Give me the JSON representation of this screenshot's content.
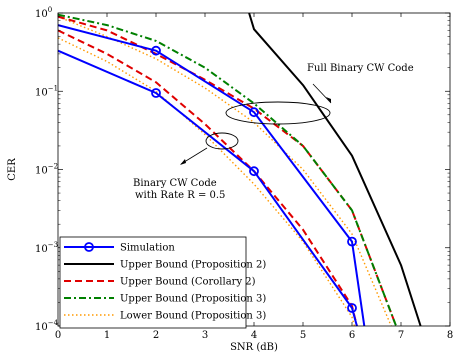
{
  "chart_data": {
    "type": "line",
    "xlabel": "SNR (dB)",
    "ylabel": "CER",
    "xlim": [
      0,
      8
    ],
    "ylim": [
      0.0001,
      1
    ],
    "yscale": "log",
    "grid": false,
    "legend_position": "bottom-left",
    "x_ticks": [
      "0",
      "1",
      "2",
      "3",
      "4",
      "5",
      "6",
      "7",
      "8"
    ],
    "y_ticks": [
      {
        "value": 1,
        "base": "10",
        "exp": "0"
      },
      {
        "value": 0.1,
        "base": "10",
        "exp": "−1"
      },
      {
        "value": 0.01,
        "base": "10",
        "exp": "−2"
      },
      {
        "value": 0.001,
        "base": "10",
        "exp": "−3"
      },
      {
        "value": 0.0001,
        "base": "10",
        "exp": "−4"
      }
    ],
    "series": [
      {
        "name": "Simulation",
        "color": "#0000ff",
        "style": "solid-marker-circle",
        "curves": [
          {
            "x": [
              0,
              2,
              4,
              6,
              6.25
            ],
            "y": [
              0.7,
              0.33,
              0.054,
              0.0012,
              0.0001
            ],
            "markers": [
              2,
              4,
              6
            ]
          },
          {
            "x": [
              0,
              2,
              4,
              6,
              6.1
            ],
            "y": [
              0.33,
              0.095,
              0.0095,
              0.00017,
              0.0001
            ],
            "markers": [
              2,
              4,
              6
            ]
          }
        ]
      },
      {
        "name": "Upper Bound (Proposition 2)",
        "color": "#000000",
        "style": "solid",
        "curves": [
          {
            "x": [
              3.9,
              4,
              5,
              6,
              7,
              7.4
            ],
            "y": [
              1,
              0.62,
              0.12,
              0.015,
              0.0006,
              0.0001
            ]
          }
        ]
      },
      {
        "name": "Upper Bound (Corollary 2)",
        "color": "#e00000",
        "style": "dashed",
        "curves": [
          {
            "x": [
              0,
              1,
              2,
              3,
              4,
              5,
              6,
              6.9
            ],
            "y": [
              0.9,
              0.6,
              0.3,
              0.14,
              0.06,
              0.02,
              0.003,
              0.0001
            ]
          },
          {
            "x": [
              0,
              1,
              2,
              3,
              4,
              5,
              6,
              6.1
            ],
            "y": [
              0.6,
              0.3,
              0.13,
              0.038,
              0.0095,
              0.0017,
              0.00018,
              0.0001
            ]
          }
        ]
      },
      {
        "name": "Upper Bound (Proposition 3)",
        "color": "#008000",
        "style": "dashdot",
        "curves": [
          {
            "x": [
              0,
              1,
              2,
              3,
              4,
              5,
              6,
              6.9
            ],
            "y": [
              0.95,
              0.7,
              0.44,
              0.2,
              0.07,
              0.02,
              0.003,
              0.0001
            ]
          }
        ]
      },
      {
        "name": "Lower Bound (Proposition 3)",
        "color": "#ff9900",
        "style": "dotted",
        "curves": [
          {
            "x": [
              0,
              1,
              2,
              3,
              4,
              5,
              6,
              6.8
            ],
            "y": [
              0.9,
              0.5,
              0.26,
              0.11,
              0.04,
              0.01,
              0.0015,
              0.0001
            ]
          },
          {
            "x": [
              0,
              1,
              2,
              3,
              4,
              5,
              6,
              6.05
            ],
            "y": [
              0.48,
              0.24,
              0.1,
              0.028,
              0.0065,
              0.0012,
              0.00013,
              0.0001
            ]
          }
        ]
      }
    ],
    "annotations": [
      {
        "id": "full",
        "lines": [
          "Full Binary CW Code"
        ]
      },
      {
        "id": "binary",
        "lines": [
          "Binary CW Code",
          "with Rate R = 0.5"
        ]
      }
    ]
  }
}
